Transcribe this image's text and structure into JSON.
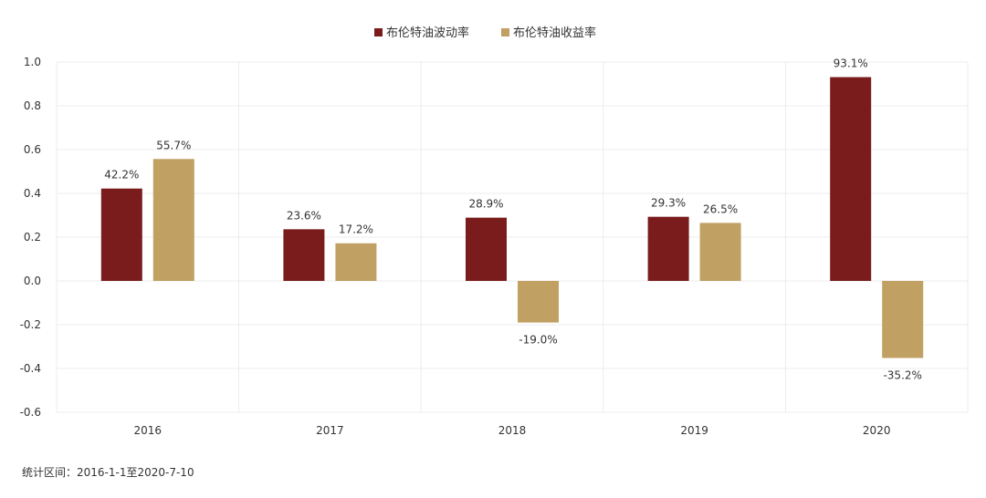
{
  "chart_data": {
    "type": "bar",
    "title": "",
    "xlabel": "",
    "ylabel": "",
    "categories": [
      "2016",
      "2017",
      "2018",
      "2019",
      "2020"
    ],
    "series": [
      {
        "name": "布伦特油波动率",
        "color": "#7a1c1c",
        "values": [
          0.422,
          0.236,
          0.289,
          0.293,
          0.931
        ],
        "labels": [
          "42.2%",
          "23.6%",
          "28.9%",
          "29.3%",
          "93.1%"
        ]
      },
      {
        "name": "布伦特油收益率",
        "color": "#c0a063",
        "values": [
          0.557,
          0.172,
          -0.19,
          0.265,
          -0.352
        ],
        "labels": [
          "55.7%",
          "17.2%",
          "-19.0%",
          "26.5%",
          "-35.2%"
        ]
      }
    ],
    "ylim": [
      -0.6,
      1.0
    ],
    "yticks": [
      "1.0",
      "0.8",
      "0.6",
      "0.4",
      "0.2",
      "0.0",
      "-0.2",
      "-0.4",
      "-0.6"
    ],
    "ytick_values": [
      1.0,
      0.8,
      0.6,
      0.4,
      0.2,
      0.0,
      -0.2,
      -0.4,
      -0.6
    ],
    "grid": true,
    "legend_position": "top-center"
  },
  "footnote": "统计区间：2016-1-1至2020-7-10"
}
